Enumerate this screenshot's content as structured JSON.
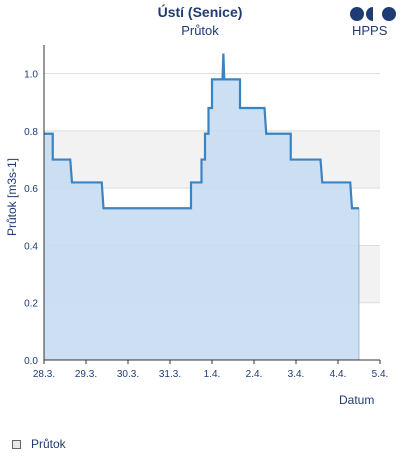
{
  "header": {
    "title": "Ústí (Senice)",
    "subtitle": "Průtok",
    "logo_text": "HPPS"
  },
  "legend": {
    "label": "Průtok"
  },
  "colors": {
    "line": "#3a84c4",
    "fill": "#c6dcf2",
    "band": "#f2f2f2",
    "text": "#1f3b73",
    "logo": "#1f3b73"
  },
  "chart_data": {
    "type": "area",
    "title": "Ústí (Senice)",
    "subtitle": "Průtok",
    "xlabel": "Datum",
    "ylabel": "Průtok [m3s-1]",
    "xlim": [
      "2025-03-28 00:00",
      "2025-04-05 00:00"
    ],
    "ylim": [
      0,
      1.1
    ],
    "x_ticks": [
      "28.3.",
      "29.3.",
      "30.3.",
      "31.3.",
      "1.4.",
      "2.4.",
      "3.4.",
      "4.4.",
      "5.4."
    ],
    "y_ticks": [
      "0.0",
      "0.2",
      "0.4",
      "0.6",
      "0.8",
      "1.0"
    ],
    "grid": true,
    "bands": [
      [
        0.2,
        0.4
      ],
      [
        0.6,
        0.8
      ]
    ],
    "legend_position": "bottom-left",
    "series": [
      {
        "name": "Průtok",
        "points": [
          [
            "2025-03-28 00:00",
            0.79
          ],
          [
            "2025-03-28 05:00",
            0.79
          ],
          [
            "2025-03-28 05:00",
            0.7
          ],
          [
            "2025-03-28 15:00",
            0.7
          ],
          [
            "2025-03-28 16:00",
            0.62
          ],
          [
            "2025-03-29 09:00",
            0.62
          ],
          [
            "2025-03-29 10:00",
            0.53
          ],
          [
            "2025-03-31 12:00",
            0.53
          ],
          [
            "2025-03-31 12:00",
            0.62
          ],
          [
            "2025-03-31 18:00",
            0.62
          ],
          [
            "2025-03-31 18:00",
            0.7
          ],
          [
            "2025-03-31 20:00",
            0.7
          ],
          [
            "2025-03-31 20:00",
            0.79
          ],
          [
            "2025-03-31 22:00",
            0.79
          ],
          [
            "2025-03-31 22:00",
            0.88
          ],
          [
            "2025-04-01 00:00",
            0.88
          ],
          [
            "2025-04-01 00:00",
            0.98
          ],
          [
            "2025-04-01 06:00",
            0.98
          ],
          [
            "2025-04-01 06:30",
            1.07
          ],
          [
            "2025-04-01 07:00",
            0.98
          ],
          [
            "2025-04-01 16:00",
            0.98
          ],
          [
            "2025-04-01 16:00",
            0.88
          ],
          [
            "2025-04-02 06:00",
            0.88
          ],
          [
            "2025-04-02 07:00",
            0.79
          ],
          [
            "2025-04-02 21:00",
            0.79
          ],
          [
            "2025-04-02 21:00",
            0.7
          ],
          [
            "2025-04-03 14:00",
            0.7
          ],
          [
            "2025-04-03 15:00",
            0.62
          ],
          [
            "2025-04-04 07:00",
            0.62
          ],
          [
            "2025-04-04 08:00",
            0.53
          ],
          [
            "2025-04-04 12:00",
            0.53
          ]
        ]
      }
    ]
  }
}
